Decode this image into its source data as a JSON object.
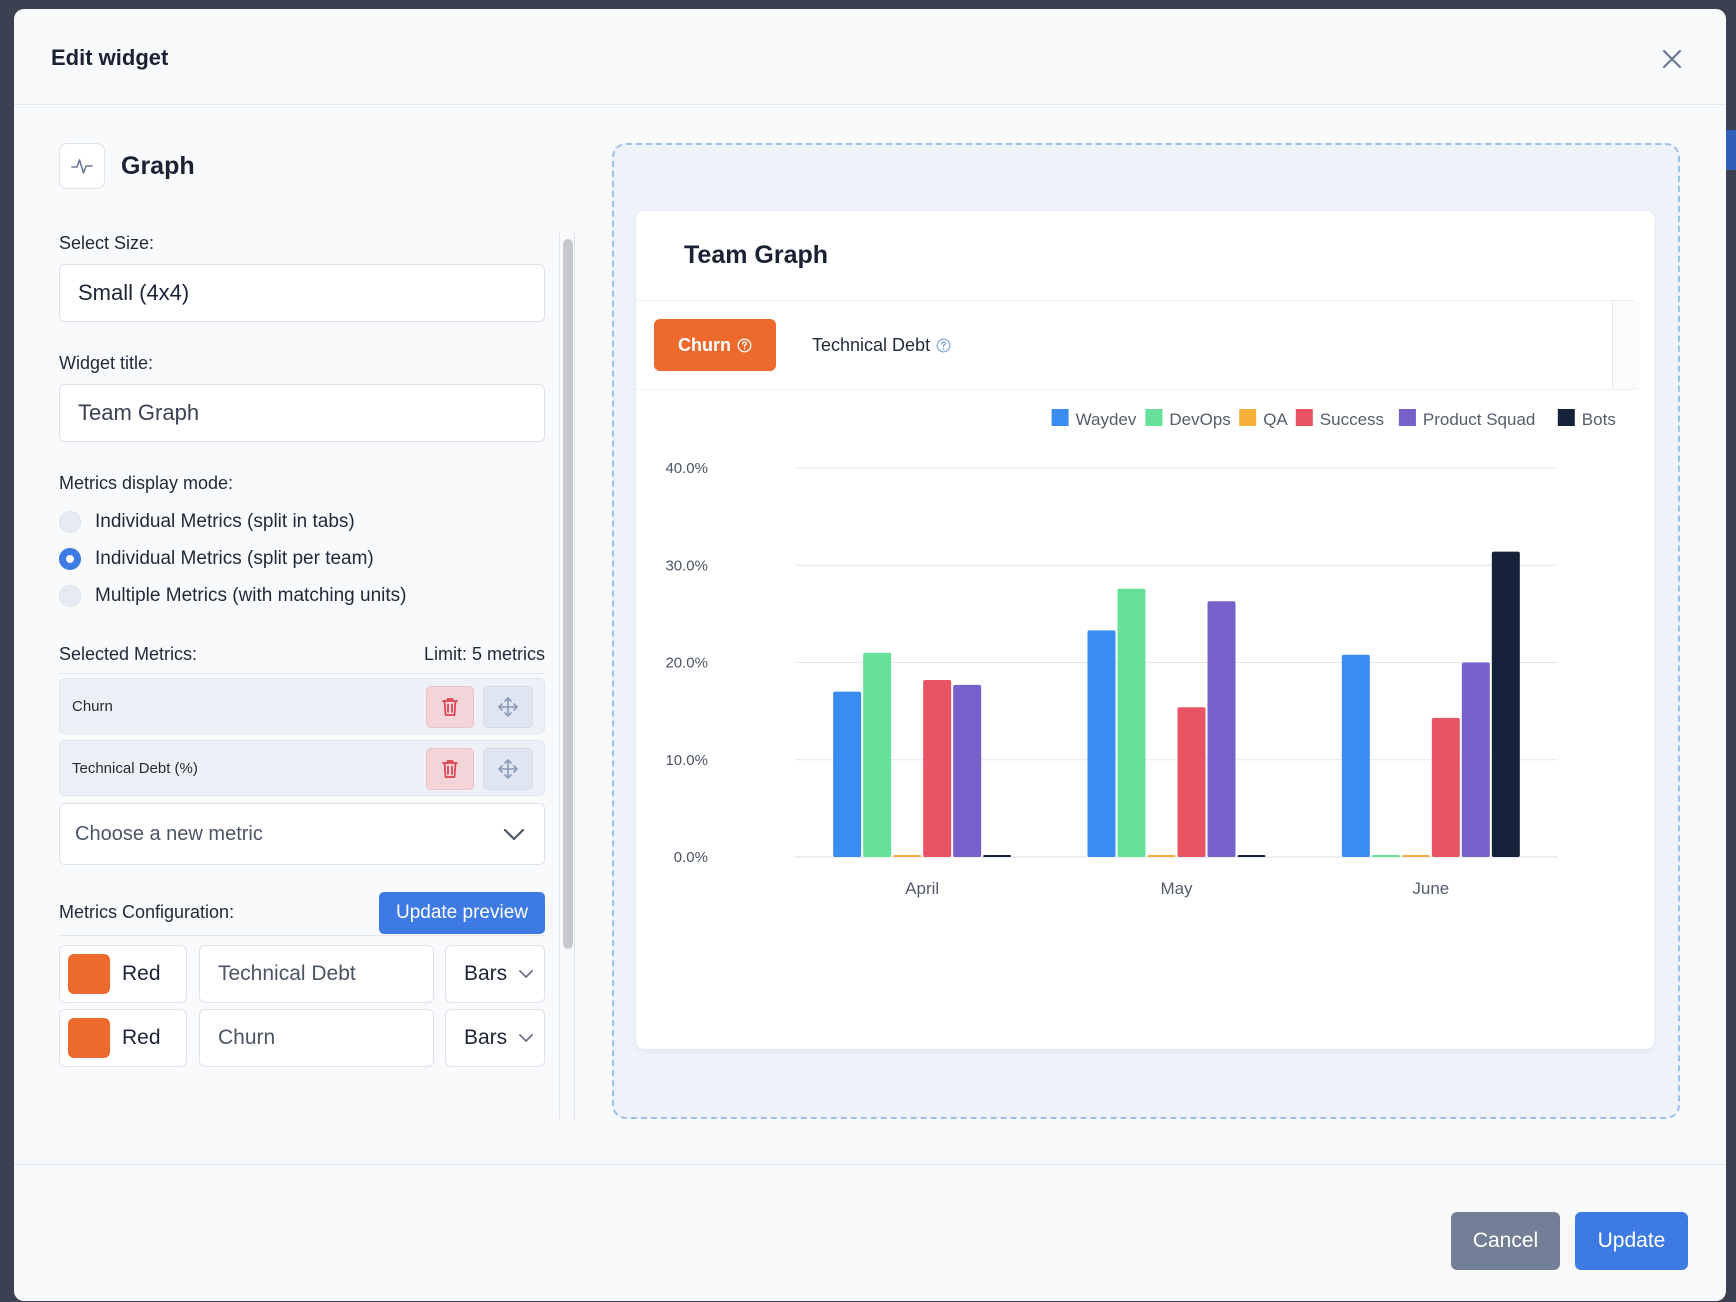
{
  "modal": {
    "title": "Edit widget"
  },
  "widget_type": {
    "label": "Graph",
    "icon": "activity-pulse-icon"
  },
  "form": {
    "size_label": "Select Size:",
    "size_value": "Small (4x4)",
    "title_label": "Widget title:",
    "title_value": "Team Graph",
    "mode_label": "Metrics display mode:",
    "modes": [
      {
        "label": "Individual Metrics (split in tabs)",
        "checked": false
      },
      {
        "label": "Individual Metrics (split per team)",
        "checked": true
      },
      {
        "label": "Multiple Metrics (with matching units)",
        "checked": false
      }
    ],
    "selected_metrics_label": "Selected Metrics:",
    "limit_label": "Limit: 5 metrics",
    "selected_metrics": [
      "Churn",
      "Technical Debt (%)"
    ],
    "choose_metric_placeholder": "Choose a new metric",
    "config_label": "Metrics Configuration:",
    "update_preview_label": "Update preview",
    "config_rows": [
      {
        "color_name": "Red",
        "color": "#ee6a2c",
        "title": "Technical Debt",
        "type": "Bars"
      },
      {
        "color_name": "Red",
        "color": "#ee6a2c",
        "title": "Churn",
        "type": "Bars"
      }
    ]
  },
  "preview": {
    "card_title": "Team Graph",
    "tabs": [
      {
        "label": "Churn",
        "active": true
      },
      {
        "label": "Technical Debt",
        "active": false
      }
    ]
  },
  "chart_data": {
    "type": "bar",
    "categories": [
      "April",
      "May",
      "June"
    ],
    "series": [
      {
        "name": "Waydev",
        "color": "#3b8cf0",
        "values": [
          17.0,
          23.3,
          20.8
        ]
      },
      {
        "name": "DevOps",
        "color": "#67e09a",
        "values": [
          21.0,
          27.6,
          0.0
        ]
      },
      {
        "name": "QA",
        "color": "#f5b03c",
        "values": [
          0.0,
          0.0,
          0.0
        ]
      },
      {
        "name": "Success",
        "color": "#e85463",
        "values": [
          18.2,
          15.4,
          14.3
        ]
      },
      {
        "name": "Product Squad",
        "color": "#7561c9",
        "values": [
          17.7,
          26.3,
          20.0
        ]
      },
      {
        "name": "Bots",
        "color": "#16213a",
        "values": [
          0.0,
          0.0,
          31.4
        ]
      }
    ],
    "y_ticks": [
      "40.0%",
      "30.0%",
      "20.0%",
      "10.0%",
      "0.0%"
    ],
    "ylim": [
      0,
      40
    ],
    "grid": true,
    "legend_position": "top-right"
  },
  "footer": {
    "cancel_label": "Cancel",
    "update_label": "Update"
  }
}
